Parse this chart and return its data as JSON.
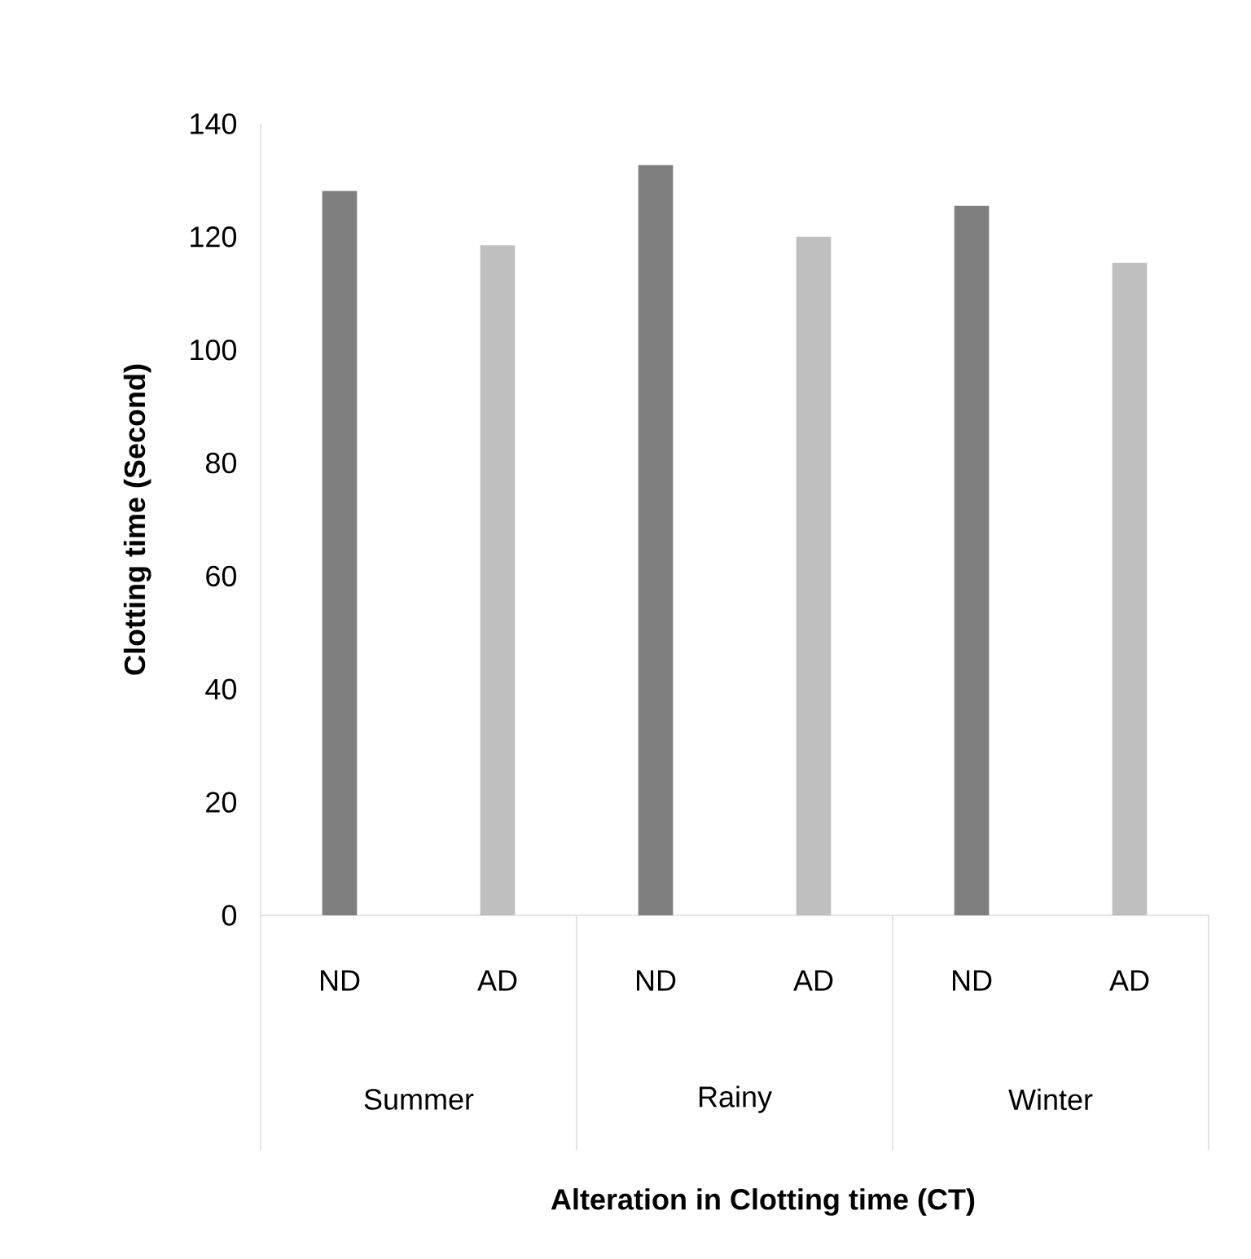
{
  "chart_data": {
    "type": "bar",
    "xlabel": "Alteration in Clotting time (CT)",
    "ylabel": "Clotting time (Second)",
    "categories": [
      "Summer",
      "Rainy",
      "Winter"
    ],
    "series": [
      {
        "name": "ND",
        "color": "#7f7f7f",
        "values": [
          128.1,
          132.7,
          125.5
        ]
      },
      {
        "name": "AD",
        "color": "#bfbfbf",
        "values": [
          118.5,
          120,
          115.4
        ]
      }
    ],
    "ylim": [
      0,
      140
    ],
    "yticks": [
      0,
      20,
      40,
      60,
      80,
      100,
      120,
      140
    ]
  }
}
